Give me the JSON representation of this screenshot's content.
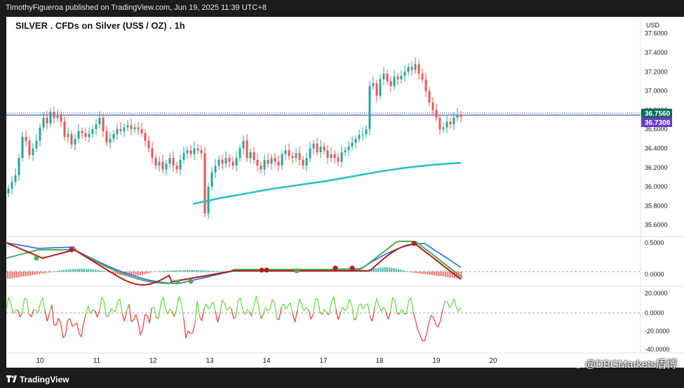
{
  "publisher_line": "TimothyFigueroa published on TradingView.com, Jun 19, 2025 11:39 UTC+8",
  "symbol_title": "SILVER . CFDs on Silver (US$ / OZ) . 1h",
  "currency": "USD",
  "branding": "TradingView",
  "watermark": "@DBGMarkets盾博",
  "colors": {
    "up_candle": "#26a69a",
    "down_candle": "#ef5350",
    "ma_line": "#22bfc9",
    "price_line": "#1a3a9b",
    "price_badge": "#0d6b5e",
    "current_badge": "#6b3ac9",
    "macd_fast": "#4caf50",
    "macd_slow": "#2962ff",
    "macd_dark": "#b71c1c",
    "osc_up": "#66dd44",
    "osc_down": "#ee4444"
  },
  "price_axis": {
    "labels": [
      "37.6000",
      "37.4000",
      "37.2000",
      "37.0000",
      "36.8000",
      "36.6000",
      "36.4000",
      "36.2000",
      "36.0000",
      "35.8000",
      "35.6000"
    ],
    "last_price": "36.7560",
    "current_value": "36.7308"
  },
  "macd_axis": {
    "labels": [
      "0.5000",
      "0.0000"
    ]
  },
  "osc_axis": {
    "labels": [
      "20.0000",
      "0.0000",
      "-20.0000",
      "-40.0000"
    ]
  },
  "time_axis": {
    "labels": [
      "10",
      "11",
      "12",
      "13",
      "14",
      "17",
      "18",
      "19",
      "20"
    ]
  },
  "chart_data": {
    "type": "candlestick",
    "title": "SILVER . CFDs on Silver (US$ / OZ) . 1h",
    "ylim": [
      35.5,
      37.7
    ],
    "x_ticks": [
      "10",
      "11",
      "12",
      "13",
      "14",
      "17",
      "18",
      "19",
      "20"
    ],
    "candles_close_path": [
      35.98,
      36.05,
      36.12,
      36.3,
      36.52,
      36.48,
      36.33,
      36.4,
      36.48,
      36.62,
      36.72,
      36.66,
      36.78,
      36.72,
      36.74,
      36.68,
      36.52,
      36.55,
      36.44,
      36.5,
      36.58,
      36.56,
      36.52,
      36.55,
      36.6,
      36.65,
      36.72,
      36.58,
      36.46,
      36.5,
      36.55,
      36.6,
      36.58,
      36.62,
      36.64,
      36.6,
      36.62,
      36.6,
      36.56,
      36.48,
      36.4,
      36.3,
      36.22,
      36.26,
      36.18,
      36.24,
      36.3,
      36.22,
      36.18,
      36.28,
      36.35,
      36.38,
      36.34,
      36.4,
      36.38,
      36.35,
      35.72,
      36.0,
      36.15,
      36.22,
      36.28,
      36.24,
      36.3,
      36.26,
      36.22,
      36.3,
      36.4,
      36.48,
      36.3,
      36.36,
      36.28,
      36.22,
      36.18,
      36.28,
      36.24,
      36.3,
      36.26,
      36.22,
      36.34,
      36.38,
      36.32,
      36.3,
      36.35,
      36.28,
      36.22,
      36.3,
      36.4,
      36.45,
      36.36,
      36.42,
      36.38,
      36.3,
      36.34,
      36.3,
      36.26,
      36.36,
      36.38,
      36.42,
      36.46,
      36.5,
      36.54,
      36.55,
      36.6,
      37.05,
      37.08,
      36.95,
      37.12,
      37.18,
      37.1,
      37.05,
      37.15,
      37.12,
      37.16,
      37.2,
      37.25,
      37.22,
      37.28,
      37.18,
      37.12,
      37.0,
      36.88,
      36.8,
      36.72,
      36.6,
      36.62,
      36.68,
      36.65,
      36.72,
      36.75,
      36.73
    ],
    "ma_series": [
      35.82,
      35.88,
      35.93,
      35.98,
      36.02,
      36.06,
      36.11,
      36.16,
      36.2,
      36.23,
      36.25
    ],
    "macd": {
      "zero": 0.0,
      "label_values": [
        0.5,
        0.0
      ]
    },
    "oscillator": {
      "range": [
        -40,
        20
      ],
      "label_values": [
        20,
        0,
        -20,
        -40
      ]
    }
  }
}
